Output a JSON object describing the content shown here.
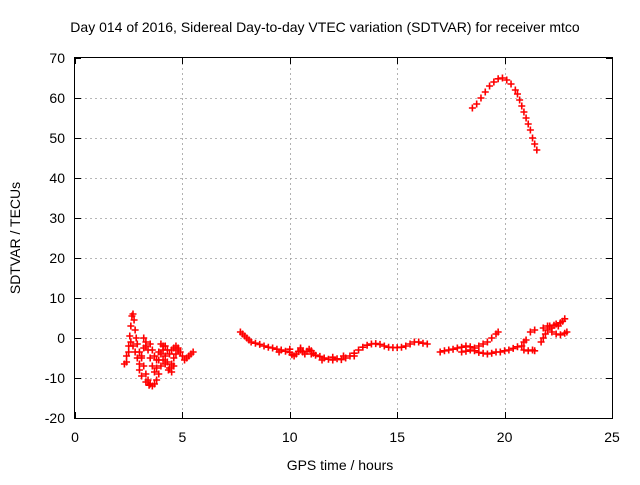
{
  "chart_data": {
    "type": "scatter",
    "title": "Day 014 of 2016, Sidereal Day-to-day VTEC variation (SDTVAR) for receiver mtco",
    "xlabel": "GPS time / hours",
    "ylabel": "SDTVAR / TECUs",
    "xlim": [
      0,
      25
    ],
    "ylim": [
      -20,
      70
    ],
    "xticks": [
      0,
      5,
      10,
      15,
      20,
      25
    ],
    "yticks": [
      -20,
      -10,
      0,
      10,
      20,
      30,
      40,
      50,
      60,
      70
    ],
    "grid": true,
    "legend": "none",
    "marker": "+",
    "color": "#ff0000",
    "series": [
      {
        "name": "segment-early-oscillation",
        "points": [
          [
            2.3,
            -6.5
          ],
          [
            2.4,
            -4.5
          ],
          [
            2.5,
            -2.0
          ],
          [
            2.55,
            0.5
          ],
          [
            2.6,
            3.0
          ],
          [
            2.65,
            5.5
          ],
          [
            2.7,
            6.0
          ],
          [
            2.75,
            4.5
          ],
          [
            2.8,
            2.0
          ],
          [
            2.85,
            0.0
          ],
          [
            2.9,
            -1.5
          ],
          [
            3.0,
            -3.5
          ],
          [
            3.1,
            -5.0
          ],
          [
            3.2,
            -7.0
          ],
          [
            3.3,
            -9.0
          ],
          [
            3.4,
            -10.5
          ],
          [
            3.5,
            -11.5
          ],
          [
            3.6,
            -12.0
          ],
          [
            3.7,
            -11.5
          ],
          [
            3.8,
            -10.5
          ],
          [
            3.9,
            -9.0
          ],
          [
            4.0,
            -7.0
          ],
          [
            4.1,
            -5.5
          ],
          [
            4.2,
            -4.5
          ],
          [
            4.3,
            -6.0
          ],
          [
            4.4,
            -7.5
          ],
          [
            4.5,
            -6.5
          ],
          [
            4.6,
            -5.0
          ],
          [
            4.7,
            -4.0
          ],
          [
            4.8,
            -3.0
          ],
          [
            4.9,
            -3.5
          ],
          [
            5.0,
            -4.5
          ],
          [
            5.1,
            -5.5
          ],
          [
            5.2,
            -5.0
          ],
          [
            5.3,
            -4.5
          ],
          [
            5.4,
            -4.0
          ],
          [
            5.5,
            -3.5
          ],
          [
            2.6,
            -1.0
          ],
          [
            2.7,
            -2.0
          ],
          [
            2.8,
            -3.5
          ],
          [
            2.9,
            -5.0
          ],
          [
            3.0,
            -6.5
          ],
          [
            3.1,
            -4.5
          ],
          [
            3.2,
            -2.5
          ],
          [
            3.3,
            -1.0
          ],
          [
            3.4,
            -3.0
          ],
          [
            3.5,
            -5.0
          ],
          [
            3.6,
            -7.0
          ],
          [
            3.7,
            -8.5
          ],
          [
            3.8,
            -7.5
          ],
          [
            3.9,
            -5.5
          ],
          [
            4.0,
            -4.0
          ],
          [
            4.1,
            -3.0
          ],
          [
            4.2,
            -2.0
          ],
          [
            4.3,
            -3.0
          ],
          [
            4.4,
            -4.0
          ],
          [
            4.5,
            -3.0
          ],
          [
            4.6,
            -2.5
          ],
          [
            4.7,
            -2.0
          ],
          [
            4.8,
            -2.5
          ],
          [
            3.2,
            0.0
          ],
          [
            3.3,
            -2.0
          ],
          [
            3.5,
            -1.5
          ],
          [
            3.6,
            -3.0
          ],
          [
            3.7,
            -4.5
          ],
          [
            3.8,
            -5.5
          ],
          [
            3.9,
            -3.5
          ],
          [
            4.0,
            -1.5
          ],
          [
            4.1,
            -2.0
          ],
          [
            2.5,
            -3.5
          ],
          [
            2.4,
            -6.0
          ],
          [
            3.0,
            -8.0
          ],
          [
            3.1,
            -9.5
          ],
          [
            3.3,
            -11.0
          ],
          [
            3.45,
            -11.8
          ],
          [
            4.2,
            -6.5
          ],
          [
            4.35,
            -8.0
          ],
          [
            4.5,
            -8.5
          ],
          [
            4.6,
            -7.0
          ]
        ]
      },
      {
        "name": "segment-midday-drift",
        "points": [
          [
            7.7,
            1.5
          ],
          [
            7.8,
            1.0
          ],
          [
            7.9,
            0.5
          ],
          [
            8.0,
            0.0
          ],
          [
            8.1,
            -0.5
          ],
          [
            8.2,
            -1.0
          ],
          [
            8.4,
            -1.3
          ],
          [
            8.6,
            -1.6
          ],
          [
            8.8,
            -2.0
          ],
          [
            9.0,
            -2.3
          ],
          [
            9.2,
            -2.5
          ],
          [
            9.4,
            -2.8
          ],
          [
            9.6,
            -3.0
          ],
          [
            9.8,
            -3.3
          ],
          [
            10.0,
            -3.6
          ],
          [
            10.1,
            -4.2
          ],
          [
            10.2,
            -4.5
          ],
          [
            10.3,
            -4.0
          ],
          [
            10.4,
            -3.4
          ],
          [
            10.5,
            -3.0
          ],
          [
            10.6,
            -3.5
          ],
          [
            10.7,
            -4.0
          ],
          [
            10.8,
            -3.3
          ],
          [
            10.9,
            -2.8
          ],
          [
            11.0,
            -3.2
          ],
          [
            11.1,
            -3.8
          ],
          [
            11.2,
            -4.3
          ],
          [
            11.4,
            -4.6
          ],
          [
            11.6,
            -5.0
          ],
          [
            11.8,
            -5.3
          ],
          [
            12.0,
            -5.5
          ],
          [
            12.2,
            -5.2
          ],
          [
            12.4,
            -5.4
          ],
          [
            12.6,
            -5.0
          ],
          [
            12.8,
            -4.5
          ],
          [
            13.0,
            -3.8
          ],
          [
            13.2,
            -3.0
          ],
          [
            13.4,
            -2.3
          ],
          [
            13.6,
            -1.8
          ],
          [
            13.8,
            -1.5
          ],
          [
            14.0,
            -1.4
          ],
          [
            14.2,
            -1.6
          ],
          [
            14.4,
            -2.0
          ],
          [
            14.6,
            -2.3
          ],
          [
            14.8,
            -2.4
          ],
          [
            15.0,
            -2.4
          ],
          [
            15.2,
            -2.3
          ],
          [
            15.4,
            -2.0
          ],
          [
            15.6,
            -1.5
          ],
          [
            15.8,
            -1.0
          ],
          [
            16.0,
            -1.0
          ],
          [
            16.2,
            -1.3
          ],
          [
            16.4,
            -1.5
          ],
          [
            9.5,
            -3.5
          ],
          [
            10.0,
            -2.8
          ],
          [
            10.5,
            -2.5
          ],
          [
            11.0,
            -4.0
          ],
          [
            11.5,
            -5.5
          ],
          [
            12.0,
            -4.8
          ],
          [
            12.5,
            -4.5
          ],
          [
            13.0,
            -4.5
          ]
        ]
      },
      {
        "name": "segment-late-trend",
        "points": [
          [
            17.0,
            -3.5
          ],
          [
            17.2,
            -3.2
          ],
          [
            17.4,
            -3.0
          ],
          [
            17.6,
            -2.8
          ],
          [
            17.8,
            -2.5
          ],
          [
            18.0,
            -2.3
          ],
          [
            18.2,
            -2.0
          ],
          [
            18.4,
            -2.2
          ],
          [
            18.6,
            -2.5
          ],
          [
            18.8,
            -2.0
          ],
          [
            19.0,
            -1.5
          ],
          [
            19.2,
            -1.0
          ],
          [
            19.4,
            0.0
          ],
          [
            19.6,
            1.0
          ],
          [
            19.7,
            1.5
          ],
          [
            18.0,
            -3.5
          ],
          [
            18.2,
            -3.3
          ],
          [
            18.4,
            -3.0
          ],
          [
            18.6,
            -3.2
          ],
          [
            18.8,
            -3.6
          ],
          [
            19.0,
            -3.8
          ],
          [
            19.2,
            -4.0
          ],
          [
            19.4,
            -3.8
          ],
          [
            19.6,
            -3.5
          ],
          [
            19.8,
            -3.5
          ],
          [
            20.0,
            -3.2
          ],
          [
            20.2,
            -3.0
          ],
          [
            20.4,
            -2.6
          ],
          [
            20.6,
            -2.2
          ],
          [
            20.8,
            -2.0
          ],
          [
            20.9,
            -1.0
          ],
          [
            21.0,
            -0.5
          ],
          [
            20.9,
            -3.0
          ],
          [
            21.1,
            -3.2
          ],
          [
            21.3,
            -3.0
          ],
          [
            21.4,
            -3.2
          ],
          [
            21.2,
            1.5
          ],
          [
            21.4,
            2.0
          ],
          [
            21.7,
            -1.0
          ],
          [
            21.8,
            0.0
          ],
          [
            21.9,
            1.0
          ],
          [
            22.0,
            2.0
          ],
          [
            22.1,
            3.0
          ],
          [
            22.2,
            2.5
          ],
          [
            22.3,
            3.2
          ],
          [
            22.4,
            3.5
          ],
          [
            22.5,
            3.0
          ],
          [
            22.6,
            3.8
          ],
          [
            22.7,
            4.2
          ],
          [
            22.8,
            4.8
          ],
          [
            21.8,
            2.5
          ],
          [
            22.0,
            3.0
          ],
          [
            22.2,
            1.5
          ],
          [
            22.4,
            1.0
          ],
          [
            22.6,
            0.8
          ],
          [
            22.8,
            1.2
          ],
          [
            22.9,
            1.5
          ]
        ]
      },
      {
        "name": "segment-peak-arc",
        "points": [
          [
            18.5,
            57.5
          ],
          [
            18.7,
            58.5
          ],
          [
            18.9,
            60.0
          ],
          [
            19.1,
            61.5
          ],
          [
            19.3,
            63.0
          ],
          [
            19.5,
            64.0
          ],
          [
            19.7,
            64.8
          ],
          [
            19.9,
            65.0
          ],
          [
            20.1,
            64.5
          ],
          [
            20.3,
            63.5
          ],
          [
            20.5,
            62.0
          ],
          [
            20.6,
            61.0
          ],
          [
            20.7,
            59.5
          ],
          [
            20.8,
            58.0
          ],
          [
            20.9,
            56.5
          ],
          [
            21.0,
            55.0
          ],
          [
            21.1,
            53.5
          ],
          [
            21.2,
            52.0
          ],
          [
            21.3,
            50.0
          ],
          [
            21.4,
            48.5
          ],
          [
            21.5,
            47.0
          ]
        ]
      }
    ]
  }
}
